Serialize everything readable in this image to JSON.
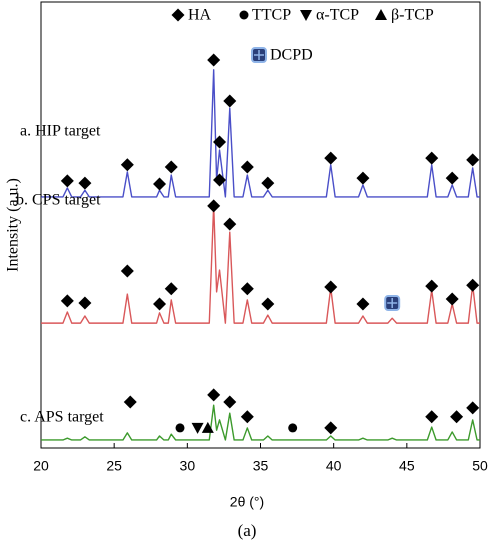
{
  "chart_data": {
    "type": "line",
    "xlabel": "2θ (°)",
    "ylabel": "Intensity (a.u.)",
    "caption": "(a)",
    "xlim": [
      20,
      50
    ],
    "xticks": [
      20,
      25,
      30,
      35,
      40,
      45,
      50
    ],
    "ylim": [
      0,
      100
    ],
    "legend": [
      {
        "label": "HA",
        "symbol": "diamond"
      },
      {
        "label": "TTCP",
        "symbol": "circle"
      },
      {
        "label": "α-TCP",
        "symbol": "triangle-down"
      },
      {
        "label": "β-TCP",
        "symbol": "triangle-up"
      },
      {
        "label": "DCPD",
        "symbol": "dcpd"
      }
    ],
    "x": [
      20,
      21.5,
      21.8,
      22.1,
      22.7,
      23.0,
      23.3,
      25.6,
      25.9,
      26.2,
      27.9,
      28.1,
      28.4,
      28.7,
      28.9,
      29.2,
      31.5,
      31.8,
      32.0,
      32.2,
      32.6,
      32.9,
      33.2,
      33.8,
      34.1,
      34.4,
      35.2,
      35.5,
      35.8,
      39.5,
      39.8,
      40.1,
      41.7,
      42.0,
      42.3,
      43.7,
      44.0,
      44.3,
      46.4,
      46.7,
      47.0,
      47.8,
      48.1,
      48.4,
      49.2,
      49.5,
      49.8,
      50
    ],
    "series": [
      {
        "name": "a. HIP target",
        "color": "#4a4fc8",
        "values": [
          56.3,
          56.3,
          58.3,
          56.3,
          56.3,
          57.8,
          56.3,
          56.3,
          61.9,
          56.3,
          56.3,
          57.8,
          56.3,
          56.3,
          61.2,
          56.3,
          56.3,
          84.8,
          60.1,
          66.8,
          56.3,
          76.2,
          56.3,
          56.3,
          61.2,
          56.3,
          56.3,
          57.8,
          56.3,
          56.3,
          63.5,
          56.3,
          56.3,
          59.0,
          56.3,
          56.3,
          56.3,
          56.3,
          56.3,
          63.5,
          56.3,
          56.3,
          59.0,
          56.3,
          56.3,
          62.8,
          56.3,
          56.3
        ],
        "markers": [
          {
            "x": 21.8,
            "y": 59.9,
            "symbol": "diamond"
          },
          {
            "x": 23.0,
            "y": 59.4,
            "symbol": "diamond"
          },
          {
            "x": 25.9,
            "y": 63.5,
            "symbol": "diamond"
          },
          {
            "x": 28.1,
            "y": 59.2,
            "symbol": "diamond"
          },
          {
            "x": 28.9,
            "y": 63.0,
            "symbol": "diamond"
          },
          {
            "x": 31.8,
            "y": 87.0,
            "symbol": "diamond"
          },
          {
            "x": 32.2,
            "y": 68.6,
            "symbol": "diamond"
          },
          {
            "x": 32.9,
            "y": 77.8,
            "symbol": "diamond"
          },
          {
            "x": 34.1,
            "y": 63.0,
            "symbol": "diamond"
          },
          {
            "x": 35.5,
            "y": 59.4,
            "symbol": "diamond"
          },
          {
            "x": 39.8,
            "y": 65.0,
            "symbol": "diamond"
          },
          {
            "x": 42.0,
            "y": 60.5,
            "symbol": "diamond"
          },
          {
            "x": 46.7,
            "y": 65.0,
            "symbol": "diamond"
          },
          {
            "x": 48.1,
            "y": 60.5,
            "symbol": "diamond"
          },
          {
            "x": 49.5,
            "y": 64.6,
            "symbol": "diamond"
          }
        ]
      },
      {
        "name": "b. CPS target",
        "color": "#d9585a",
        "values": [
          28.0,
          28.0,
          30.5,
          28.0,
          28.0,
          29.6,
          28.0,
          28.0,
          34.5,
          28.0,
          28.0,
          30.3,
          28.0,
          28.0,
          33.2,
          28.0,
          28.0,
          54.5,
          35.0,
          39.9,
          28.0,
          48.4,
          28.0,
          28.0,
          33.2,
          28.0,
          28.0,
          29.8,
          28.0,
          28.0,
          35.9,
          28.0,
          28.0,
          29.6,
          28.0,
          28.0,
          29.1,
          28.0,
          28.0,
          35.4,
          28.0,
          28.0,
          32.3,
          28.0,
          28.0,
          36.5,
          28.0,
          28.0
        ],
        "markers": [
          {
            "x": 21.8,
            "y": 33.0,
            "symbol": "diamond"
          },
          {
            "x": 23.0,
            "y": 32.5,
            "symbol": "diamond"
          },
          {
            "x": 25.9,
            "y": 39.7,
            "symbol": "diamond"
          },
          {
            "x": 28.1,
            "y": 32.3,
            "symbol": "diamond"
          },
          {
            "x": 28.9,
            "y": 35.7,
            "symbol": "diamond"
          },
          {
            "x": 31.8,
            "y": 54.3,
            "symbol": "diamond"
          },
          {
            "x": 32.2,
            "y": 60.1,
            "symbol": "diamond"
          },
          {
            "x": 32.9,
            "y": 50.2,
            "symbol": "diamond"
          },
          {
            "x": 34.1,
            "y": 35.7,
            "symbol": "diamond"
          },
          {
            "x": 35.5,
            "y": 32.3,
            "symbol": "diamond"
          },
          {
            "x": 39.8,
            "y": 36.1,
            "symbol": "diamond"
          },
          {
            "x": 42.0,
            "y": 32.3,
            "symbol": "diamond"
          },
          {
            "x": 44.0,
            "y": 32.5,
            "symbol": "dcpd"
          },
          {
            "x": 46.7,
            "y": 36.3,
            "symbol": "diamond"
          },
          {
            "x": 48.1,
            "y": 33.4,
            "symbol": "diamond"
          },
          {
            "x": 49.5,
            "y": 36.5,
            "symbol": "diamond"
          }
        ]
      },
      {
        "name": "c. APS target",
        "color": "#3c9a2c",
        "values": [
          1.8,
          1.8,
          2.2,
          1.8,
          1.8,
          2.5,
          1.8,
          1.8,
          3.4,
          1.8,
          1.8,
          2.7,
          1.8,
          1.8,
          3.1,
          1.8,
          1.8,
          9.6,
          4.0,
          6.3,
          1.8,
          7.8,
          1.8,
          1.8,
          4.5,
          1.8,
          1.8,
          2.7,
          1.8,
          1.8,
          2.7,
          1.8,
          1.8,
          2.2,
          1.8,
          1.8,
          2.2,
          1.8,
          1.8,
          4.7,
          1.8,
          1.8,
          3.6,
          1.8,
          1.8,
          6.3,
          1.8,
          1.8
        ],
        "markers": [
          {
            "x": 26.1,
            "y": 10.3,
            "symbol": "diamond"
          },
          {
            "x": 29.5,
            "y": 4.5,
            "symbol": "circle"
          },
          {
            "x": 30.7,
            "y": 4.5,
            "symbol": "triangle-down"
          },
          {
            "x": 31.4,
            "y": 4.5,
            "symbol": "triangle-up"
          },
          {
            "x": 31.8,
            "y": 11.9,
            "symbol": "diamond"
          },
          {
            "x": 32.9,
            "y": 10.3,
            "symbol": "diamond"
          },
          {
            "x": 34.1,
            "y": 7.0,
            "symbol": "diamond"
          },
          {
            "x": 37.2,
            "y": 4.5,
            "symbol": "circle"
          },
          {
            "x": 39.8,
            "y": 4.5,
            "symbol": "diamond"
          },
          {
            "x": 46.7,
            "y": 7.0,
            "symbol": "diamond"
          },
          {
            "x": 48.4,
            "y": 7.0,
            "symbol": "diamond"
          },
          {
            "x": 49.5,
            "y": 9.0,
            "symbol": "diamond"
          }
        ]
      }
    ]
  }
}
